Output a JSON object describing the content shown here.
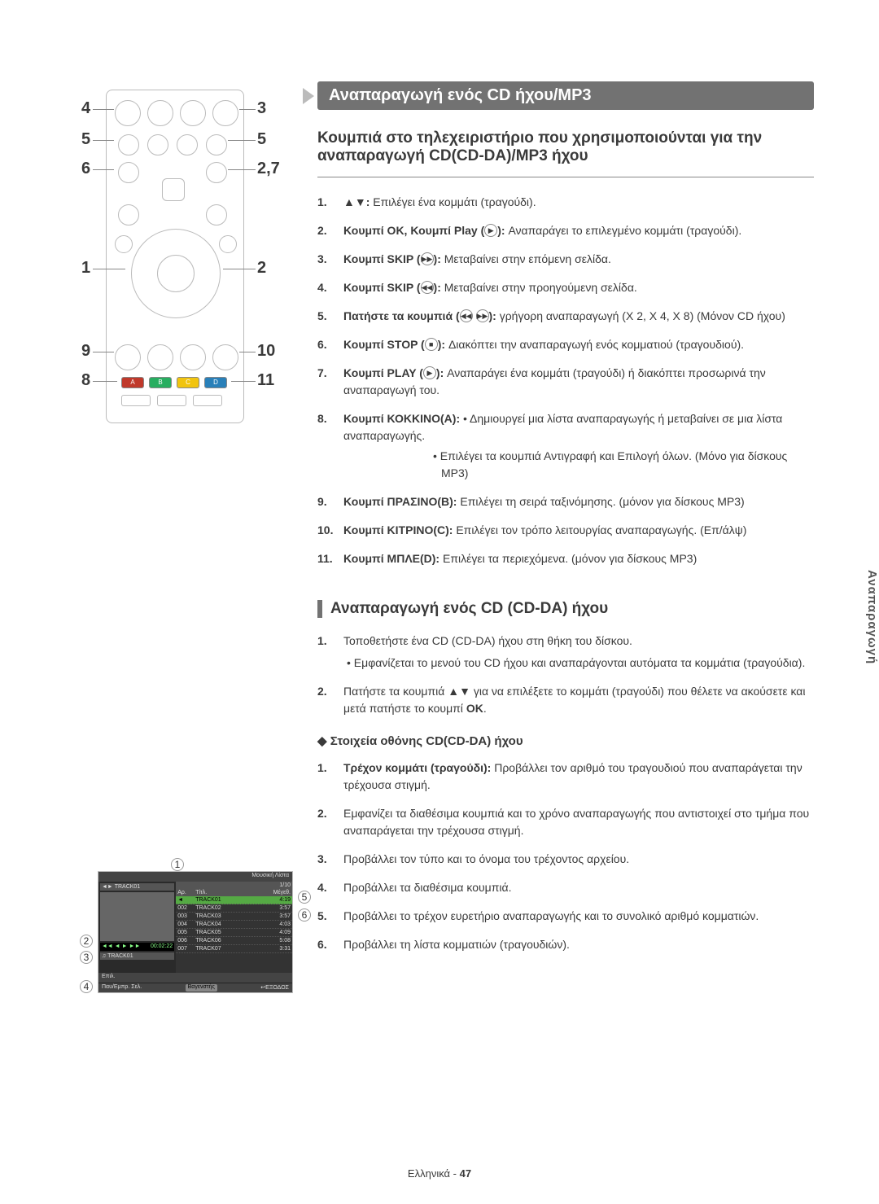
{
  "banner1": "Αναπαραγωγή ενός CD ήχου/MP3",
  "sub1": "Κουμπιά στο τηλεχειριστήριο που χρησιμοποιούνται για την αναπαραγωγή CD(CD-DA)/MP3 ήχου",
  "remote_callouts": {
    "l1": "4",
    "l2": "5",
    "l3": "6",
    "l4": "1",
    "l5": "9",
    "l6": "8",
    "r1": "3",
    "r2": "5",
    "r3": "2,7",
    "r4": "2",
    "r5": "10",
    "r6": "11"
  },
  "abcd": {
    "a": "A",
    "b": "B",
    "c": "C",
    "d": "D"
  },
  "list1": [
    {
      "n": "1.",
      "lead": "▲▼:",
      "text": " Επιλέγει ένα κομμάτι (τραγούδι)."
    },
    {
      "n": "2.",
      "lead": "Κουμπί OK, Κουμπί Play (",
      "icon": "▶",
      "tail": "): ",
      "text": "Αναπαράγει το επιλεγμένο κομμάτι (τραγούδι)."
    },
    {
      "n": "3.",
      "lead": "Κουμπί SKIP (",
      "icon": "▶▶",
      "tail": "): ",
      "text": "Μεταβαίνει στην επόμενη σελίδα."
    },
    {
      "n": "4.",
      "lead": "Κουμπί SKIP (",
      "icon": "◀◀",
      "tail": "): ",
      "text": "Μεταβαίνει στην προηγούμενη σελίδα."
    },
    {
      "n": "5.",
      "lead": "Πατήστε τα κουμπιά (",
      "icon": "◀◀",
      "icon2": "▶▶",
      "tail": "): ",
      "text": "γρήγορη αναπαραγωγή (X 2, X 4, X 8) (Μόνον CD ήχου)"
    },
    {
      "n": "6.",
      "lead": "Κουμπί STOP (",
      "icon": "■",
      "tail": "): ",
      "text": "Διακόπτει την αναπαραγωγή ενός κομματιού (τραγουδιού)."
    },
    {
      "n": "7.",
      "lead": "Κουμπί PLAY (",
      "icon": "▶",
      "tail": "): ",
      "text": "Αναπαράγει ένα κομμάτι (τραγούδι) ή διακόπτει προσωρινά την αναπαραγωγή του."
    },
    {
      "n": "8.",
      "lead": "Κουμπί ΚΟΚΚΙΝΟ(A): ",
      "text": "• Δημιουργεί μια λίστα αναπαραγωγής ή μεταβαίνει σε μια λίστα αναπαραγωγής.",
      "extra": "• Επιλέγει τα κουμπιά Αντιγραφή και Επιλογή όλων. (Μόνο για δίσκους MP3)"
    },
    {
      "n": "9.",
      "lead": "Κουμπί ΠΡΑΣΙΝΟ(B): ",
      "text": "Επιλέγει τη σειρά ταξινόμησης. (μόνον για δίσκους MP3)"
    },
    {
      "n": "10.",
      "lead": "Κουμπί ΚΙΤΡΙΝΟ(C): ",
      "text": "Επιλέγει τον τρόπο λειτουργίας αναπαραγωγής. (Επ/άλψ)"
    },
    {
      "n": "11.",
      "lead": "Κουμπί ΜΠΛΕ(D): ",
      "text": "Επιλέγει τα περιεχόμενα. (μόνον για δίσκους MP3)"
    }
  ],
  "heading2": "Αναπαραγωγή ενός CD (CD-DA) ήχου",
  "list2": [
    {
      "n": "1.",
      "text": "Τοποθετήστε ένα CD (CD-DA) ήχου στη θήκη του δίσκου.",
      "bullet": "• Εμφανίζεται το μενού του CD ήχου και αναπαράγονται αυτόματα τα κομμάτια (τραγούδια)."
    },
    {
      "n": "2.",
      "text": "Πατήστε τα κουμπιά ▲▼ για να επιλέξετε το κομμάτι (τραγούδι) που θέλετε να ακούσετε και μετά πατήστε το κουμπί ",
      "bold_tail": "OK",
      "tail2": "."
    }
  ],
  "sub_heading": "Στοιχεία οθόνης CD(CD-DA) ήχου",
  "list3": [
    {
      "n": "1.",
      "lead": "Τρέχον κομμάτι (τραγούδι): ",
      "text": "Προβάλλει τον αριθμό του τραγουδιού που αναπαράγεται την τρέχουσα στιγμή."
    },
    {
      "n": "2.",
      "text": "Εμφανίζει τα διαθέσιμα κουμπιά και το χρόνο αναπαραγωγής που αντιστοιχεί στο τμήμα που αναπαράγεται την τρέχουσα στιγμή."
    },
    {
      "n": "3.",
      "text": "Προβάλλει τον τύπο και το όνομα του τρέχοντος αρχείου."
    },
    {
      "n": "4.",
      "text": "Προβάλλει τα διαθέσιμα κουμπιά."
    },
    {
      "n": "5.",
      "text": "Προβάλλει το τρέχον ευρετήριο αναπαραγωγής και το συνολικό αριθμό κομματιών."
    },
    {
      "n": "6.",
      "text": "Προβάλλει τη λίστα κομματιών (τραγουδιών)."
    }
  ],
  "screenshot": {
    "topbar": "Μουσική Λίστα",
    "index": "1/10",
    "nowplaying_title": "TRACK01",
    "time": "00:02:22",
    "current_track": "TRACK01",
    "thead": {
      "c1": "Αρ.",
      "c2": "Τίτλ.",
      "c3": "Μέγεθ."
    },
    "tracks": [
      {
        "no": "◄",
        "title": "TRACK01",
        "len": "4:19"
      },
      {
        "no": "002",
        "title": "TRACK02",
        "len": "3:57"
      },
      {
        "no": "003",
        "title": "TRACK03",
        "len": "3:57"
      },
      {
        "no": "004",
        "title": "TRACK04",
        "len": "4:03"
      },
      {
        "no": "005",
        "title": "TRACK05",
        "len": "4:09"
      },
      {
        "no": "006",
        "title": "TRACK06",
        "len": "5:08"
      },
      {
        "no": "007",
        "title": "TRACK07",
        "len": "3:31"
      }
    ],
    "bottom_left": "Επιλ.",
    "bottom_left2": "Παυ/Εμπρ. Σελ.",
    "bottom_mid": "Βαγενστής",
    "bottom_right": "ΕΞΟΔΟΣ",
    "callouts": {
      "c1": "1",
      "c2": "2",
      "c3": "3",
      "c4": "4",
      "c5": "5",
      "c6": "6"
    }
  },
  "side_tab": "Αναπαραγωγή",
  "footer_label": "Ελληνικά - ",
  "footer_page": "47"
}
